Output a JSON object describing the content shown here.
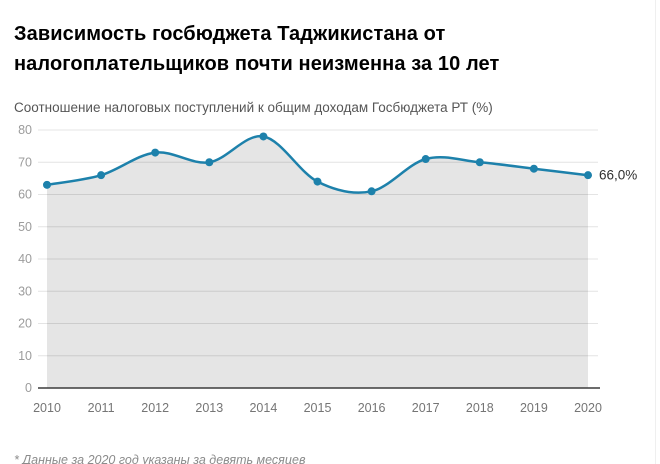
{
  "header": {
    "title": "Зависимость госбюджета Таджикистана от налогоплательщиков почти неизменна за 10 лет",
    "subtitle": "Соотношение налоговых поступлений к общим доходам Госбюджета РТ (%)"
  },
  "footer": {
    "note": "* Данные за 2020 год указаны за девять месяцев"
  },
  "chart_data": {
    "type": "area",
    "title": "Зависимость госбюджета Таджикистана от налогоплательщиков почти неизменна за 10 лет",
    "subtitle": "Соотношение налоговых поступлений к общим доходам Госбюджета РТ (%)",
    "categories": [
      "2010",
      "2011",
      "2012",
      "2013",
      "2014",
      "2015",
      "2016",
      "2017",
      "2018",
      "2019",
      "2020"
    ],
    "values": [
      63,
      66,
      73,
      70,
      78,
      64,
      61,
      71,
      70,
      68,
      66
    ],
    "end_label": "66,0%",
    "xlabel": "",
    "ylabel": "",
    "ylim": [
      0,
      80
    ],
    "ytick_step": 10,
    "yticks": [
      0,
      10,
      20,
      30,
      40,
      50,
      60,
      70,
      80
    ],
    "grid": true,
    "legend_position": "none",
    "line_color": "#1d81ab",
    "marker_color": "#1d81ab",
    "area_fill": "rgba(0,0,0,0.10)",
    "gridline_color": "#e4e4e4",
    "axis_line_color": "#3c3c3c",
    "ytick_label_color": "#9c9c9c",
    "xtick_label_color": "#757575",
    "end_label_color": "#303030",
    "note": "* Данные за 2020 год указаны за девять месяцев"
  }
}
